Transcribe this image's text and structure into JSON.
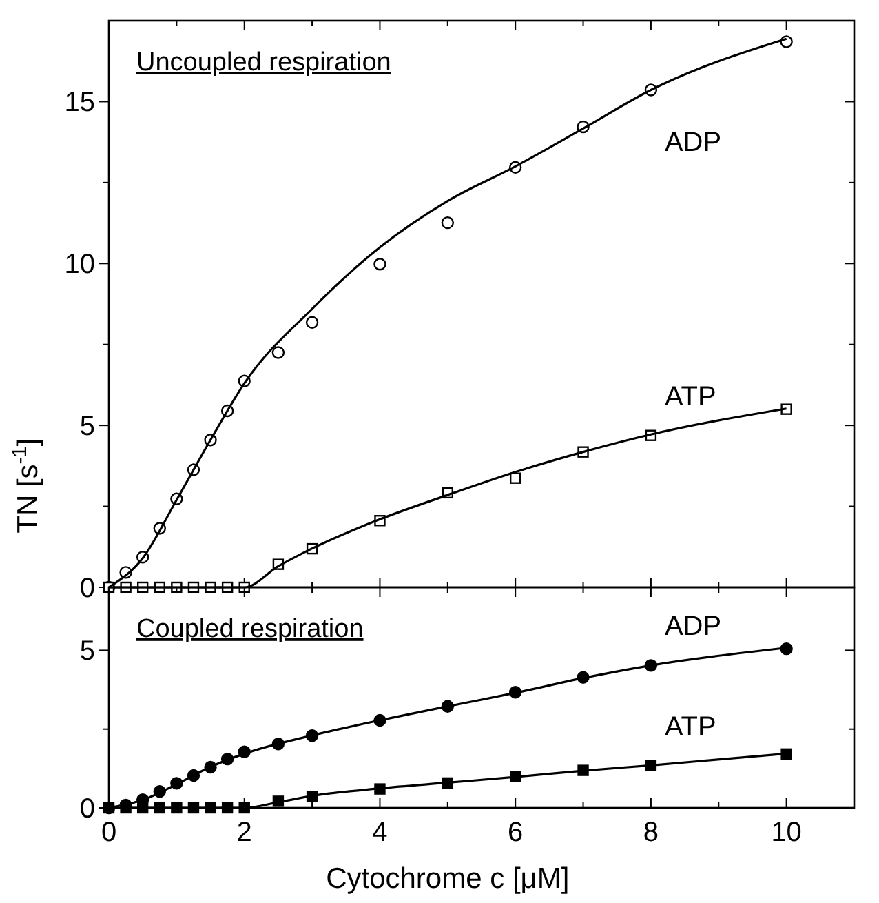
{
  "chart_data": [
    {
      "type": "scatter",
      "title": "Uncoupled respiration",
      "ylabel": "TN [s$^{-1}$]",
      "xlim": [
        0,
        11
      ],
      "ylim": [
        0,
        17.5
      ],
      "xticks": [
        0,
        {
          "value": 1,
          "label": null
        },
        2,
        {
          "value": 3,
          "label": null
        },
        4,
        {
          "value": 5,
          "label": null
        },
        6,
        {
          "value": 7,
          "label": null
        },
        8,
        {
          "value": 9,
          "label": null
        },
        10,
        {
          "value": 11,
          "label": null
        }
      ],
      "yticks": [
        0,
        {
          "value": 2.5,
          "label": null
        },
        5,
        {
          "value": 7.5,
          "label": null
        },
        10,
        {
          "value": 12.5,
          "label": null
        },
        15
      ],
      "tick_labels": "y",
      "grid": false,
      "series": [
        {
          "name": "ADP",
          "color": "#000000",
          "marker": "circle",
          "x": [
            0,
            0.25,
            0.5,
            0.75,
            1,
            1.25,
            1.5,
            1.75,
            2,
            2.5,
            3,
            4,
            5,
            6,
            7,
            8,
            10
          ],
          "values": [
            0,
            0.46,
            0.93,
            1.82,
            2.73,
            3.63,
            4.55,
            5.45,
            6.37,
            7.25,
            8.18,
            9.98,
            11.26,
            12.97,
            14.22,
            15.36,
            16.85
          ]
        },
        {
          "name": "ATP",
          "color": "#000000",
          "marker": "square",
          "x": [
            0,
            0.25,
            0.5,
            0.75,
            1,
            1.25,
            1.5,
            1.75,
            2,
            2.5,
            3,
            4,
            5,
            6,
            7,
            8,
            10
          ],
          "values": [
            0,
            0,
            0,
            0,
            0,
            0,
            0,
            0,
            0,
            0.71,
            1.19,
            2.06,
            2.92,
            3.37,
            4.18,
            4.69,
            5.5
          ]
        },
        {
          "type": "line",
          "color": "#000000",
          "marker": "none",
          "line_style": "solid",
          "x": [
            0,
            0.5,
            1,
            1.5,
            2,
            3,
            4,
            5,
            6,
            7,
            8,
            10
          ],
          "values": [
            0,
            0.9,
            2.7,
            4.55,
            6.3,
            8.6,
            10.5,
            11.93,
            13,
            14.17,
            15.36,
            16.94
          ]
        },
        {
          "type": "line",
          "color": "#000000",
          "marker": "none",
          "line_style": "solid",
          "x": [
            0,
            1,
            2,
            2.5,
            3,
            4,
            5,
            6,
            7,
            8,
            10
          ],
          "values": [
            0,
            0,
            0,
            0.65,
            1.2,
            2.1,
            2.85,
            3.56,
            4.18,
            4.72,
            5.52
          ]
        }
      ]
    },
    {
      "type": "scatter",
      "title": "Coupled respiration",
      "xlabel": "Cytochrome c [μM]",
      "xlim": [
        0,
        11
      ],
      "ylim": [
        0,
        7
      ],
      "xticks": [
        0,
        {
          "value": 1,
          "label": null
        },
        2,
        {
          "value": 3,
          "label": null
        },
        4,
        {
          "value": 5,
          "label": null
        },
        6,
        {
          "value": 7,
          "label": null
        },
        8,
        {
          "value": 9,
          "label": null
        },
        10,
        {
          "value": 11,
          "label": null
        }
      ],
      "yticks": [
        0,
        {
          "value": 2.5,
          "label": null
        },
        5
      ],
      "grid": false,
      "series": [
        {
          "name": "ADP",
          "color": "#000000",
          "marker": "circle",
          "x": [
            0,
            0.25,
            0.5,
            0.75,
            1,
            1.25,
            1.5,
            1.75,
            2,
            2.5,
            3,
            4,
            5,
            6,
            7,
            8,
            10
          ],
          "values": [
            0,
            0.09,
            0.26,
            0.52,
            0.78,
            1.03,
            1.29,
            1.55,
            1.78,
            2.03,
            2.29,
            2.78,
            3.22,
            3.67,
            4.14,
            4.52,
            5.05
          ]
        },
        {
          "name": "ATP",
          "color": "#000000",
          "marker": "square",
          "x": [
            0,
            0.25,
            0.5,
            0.75,
            1,
            1.25,
            1.5,
            1.75,
            2,
            2.5,
            3,
            4,
            5,
            6,
            7,
            8,
            10
          ],
          "values": [
            0,
            0,
            0,
            0,
            0,
            0,
            0,
            0,
            0,
            0.21,
            0.36,
            0.6,
            0.79,
            1,
            1.19,
            1.34,
            1.71
          ]
        },
        {
          "type": "line",
          "color": "#000000",
          "marker": "none",
          "line_style": "solid",
          "x": [
            0,
            0.5,
            1,
            1.5,
            2,
            3,
            4,
            5,
            6,
            7,
            8,
            10
          ],
          "values": [
            0,
            0.25,
            0.75,
            1.3,
            1.72,
            2.3,
            2.78,
            3.22,
            3.65,
            4.12,
            4.52,
            5.08
          ]
        },
        {
          "type": "line",
          "color": "#000000",
          "marker": "none",
          "line_style": "solid",
          "x": [
            0,
            1,
            2,
            2.5,
            3,
            4,
            5,
            6,
            7,
            8,
            10
          ],
          "values": [
            0,
            0,
            0,
            0.18,
            0.38,
            0.62,
            0.8,
            0.98,
            1.18,
            1.35,
            1.72
          ]
        }
      ]
    }
  ]
}
